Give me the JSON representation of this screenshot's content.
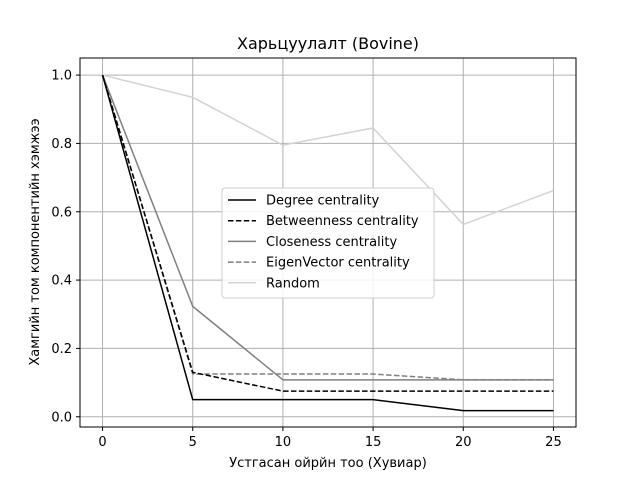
{
  "chart_data": {
    "type": "line",
    "title": "Харьцуулалт (Bovine)",
    "xlabel": "Устгасан ойрйн тоо (Хувиар)",
    "ylabel": "Хамгийн том компонентийн хэмжээ",
    "x": [
      0,
      5,
      10,
      15,
      20,
      25
    ],
    "xlim": [
      -1.25,
      26.25
    ],
    "ylim": [
      -0.03,
      1.05
    ],
    "xticks": [
      "0",
      "5",
      "10",
      "15",
      "20",
      "25"
    ],
    "yticks": [
      "0.0",
      "0.2",
      "0.4",
      "0.6",
      "0.8",
      "1.0"
    ],
    "grid": true,
    "legend_position": "center",
    "series": [
      {
        "name": "Degree centrality",
        "values": [
          1.0,
          0.05,
          0.05,
          0.05,
          0.018,
          0.018
        ],
        "color": "#000000",
        "dash": "solid"
      },
      {
        "name": "Betweenness centrality",
        "values": [
          1.0,
          0.13,
          0.075,
          0.075,
          0.075,
          0.075
        ],
        "color": "#000000",
        "dash": "dashed"
      },
      {
        "name": "Closeness centrality",
        "values": [
          1.0,
          0.323,
          0.108,
          0.108,
          0.108,
          0.108
        ],
        "color": "#808080",
        "dash": "solid"
      },
      {
        "name": "EigenVector centrality",
        "values": [
          1.0,
          0.125,
          0.125,
          0.125,
          0.108,
          0.108
        ],
        "color": "#808080",
        "dash": "dashed"
      },
      {
        "name": "Random",
        "values": [
          1.0,
          0.935,
          0.795,
          0.845,
          0.563,
          0.662
        ],
        "color": "#d3d3d3",
        "dash": "solid"
      }
    ]
  }
}
